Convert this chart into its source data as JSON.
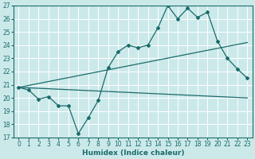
{
  "title": "",
  "xlabel": "Humidex (Indice chaleur)",
  "ylabel": "",
  "xlim": [
    -0.5,
    23.5
  ],
  "ylim": [
    17,
    27
  ],
  "yticks": [
    17,
    18,
    19,
    20,
    21,
    22,
    23,
    24,
    25,
    26,
    27
  ],
  "xticks": [
    0,
    1,
    2,
    3,
    4,
    5,
    6,
    7,
    8,
    9,
    10,
    11,
    12,
    13,
    14,
    15,
    16,
    17,
    18,
    19,
    20,
    21,
    22,
    23
  ],
  "bg_color": "#cce9ea",
  "grid_color": "#ffffff",
  "line_color": "#1a6b6b",
  "line1_x": [
    0,
    1,
    2,
    3,
    4,
    5,
    6,
    7,
    8,
    9,
    10,
    11,
    12,
    13,
    14,
    15,
    16,
    17,
    18,
    19,
    20,
    21,
    22,
    23
  ],
  "line1_y": [
    20.8,
    20.6,
    19.9,
    20.1,
    19.4,
    19.4,
    17.3,
    18.5,
    19.8,
    22.3,
    23.5,
    24.0,
    23.8,
    24.0,
    25.3,
    27.0,
    26.0,
    26.8,
    26.1,
    26.5,
    24.3,
    23.0,
    22.2,
    21.5
  ],
  "line2_x": [
    0,
    23
  ],
  "line2_y": [
    20.8,
    24.2
  ],
  "line3_x": [
    0,
    23
  ],
  "line3_y": [
    20.8,
    20.0
  ],
  "marker_style": "D",
  "marker_size": 2.0,
  "line_width": 0.9,
  "tick_fontsize": 5.5,
  "xlabel_fontsize": 6.5
}
